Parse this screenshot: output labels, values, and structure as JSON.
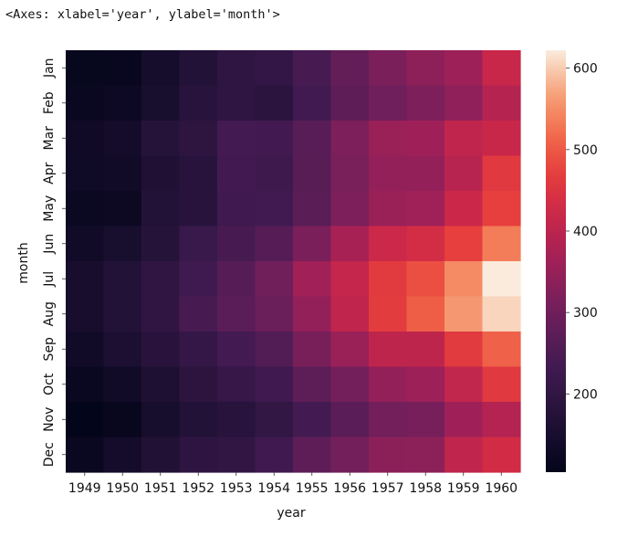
{
  "header": {
    "repr": "<Axes: xlabel='year', ylabel='month'>"
  },
  "chart_data": {
    "type": "heatmap",
    "title": "",
    "xlabel": "year",
    "ylabel": "month",
    "x": [
      "1949",
      "1950",
      "1951",
      "1952",
      "1953",
      "1954",
      "1955",
      "1956",
      "1957",
      "1958",
      "1959",
      "1960"
    ],
    "y": [
      "Jan",
      "Feb",
      "Mar",
      "Apr",
      "May",
      "Jun",
      "Jul",
      "Aug",
      "Sep",
      "Oct",
      "Nov",
      "Dec"
    ],
    "values": [
      [
        112,
        115,
        145,
        171,
        196,
        204,
        242,
        284,
        315,
        340,
        360,
        417
      ],
      [
        118,
        126,
        150,
        180,
        196,
        188,
        233,
        277,
        301,
        318,
        342,
        391
      ],
      [
        132,
        141,
        178,
        193,
        236,
        235,
        267,
        317,
        356,
        362,
        406,
        419
      ],
      [
        129,
        135,
        163,
        181,
        235,
        227,
        269,
        313,
        348,
        348,
        396,
        461
      ],
      [
        121,
        125,
        172,
        183,
        229,
        234,
        270,
        318,
        355,
        363,
        420,
        472
      ],
      [
        135,
        149,
        178,
        218,
        243,
        264,
        315,
        374,
        422,
        435,
        472,
        535
      ],
      [
        148,
        170,
        199,
        230,
        264,
        302,
        364,
        413,
        465,
        491,
        548,
        622
      ],
      [
        148,
        170,
        199,
        242,
        272,
        293,
        347,
        405,
        467,
        505,
        559,
        606
      ],
      [
        136,
        158,
        184,
        209,
        237,
        259,
        312,
        355,
        404,
        404,
        463,
        508
      ],
      [
        119,
        133,
        162,
        191,
        211,
        229,
        274,
        306,
        347,
        359,
        407,
        461
      ],
      [
        104,
        114,
        146,
        172,
        180,
        203,
        237,
        271,
        305,
        310,
        362,
        390
      ],
      [
        118,
        140,
        166,
        194,
        201,
        229,
        278,
        306,
        336,
        337,
        405,
        432
      ]
    ],
    "colorbar": {
      "min": 104,
      "max": 622,
      "ticks": [
        200,
        300,
        400,
        500,
        600
      ]
    },
    "colormap": "rocket"
  }
}
